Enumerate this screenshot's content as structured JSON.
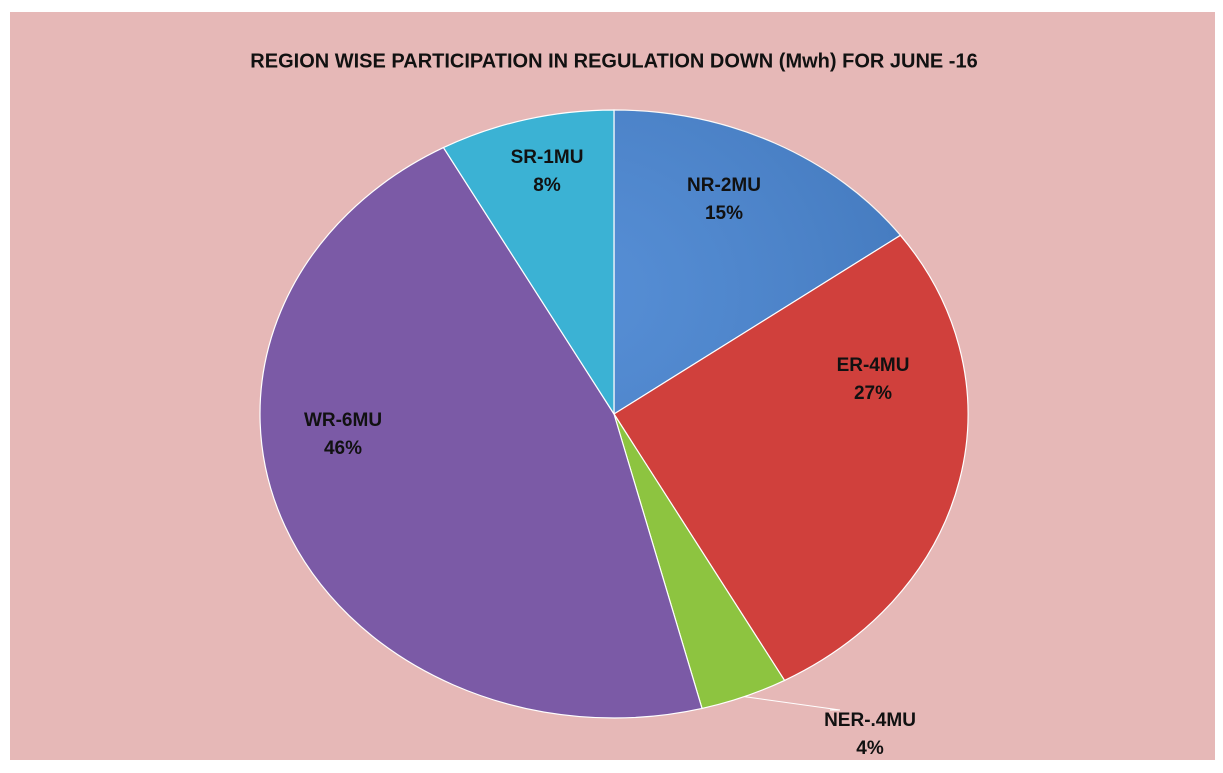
{
  "chart_data": {
    "type": "pie",
    "title": "REGION WISE PARTICIPATION IN REGULATION DOWN (Mwh) FOR JUNE -16",
    "categories": [
      "NR-2MU",
      "ER-4MU",
      "NER-.4MU",
      "WR-6MU",
      "SR-1MU"
    ],
    "values": [
      15,
      27,
      4,
      46,
      8
    ],
    "value_labels": [
      "15%",
      "27%",
      "4%",
      "46%",
      "8%"
    ],
    "colors": [
      "#3f7fd0",
      "#d0403c",
      "#8dc440",
      "#7b5aa6",
      "#3bb2d4"
    ]
  }
}
